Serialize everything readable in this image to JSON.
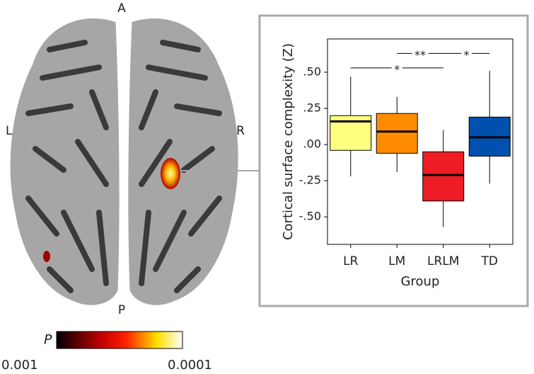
{
  "brain": {
    "anterior": "A",
    "posterior": "P",
    "left": "L",
    "right": "R"
  },
  "colorbar": {
    "title": "P",
    "min_label": "0.001",
    "max_label": "0.0001"
  },
  "chart_data": {
    "type": "box",
    "y_label": "Cortical surface complexity (Z)",
    "x_label": "Group",
    "categories": [
      "LR",
      "LM",
      "LRLM",
      "TD"
    ],
    "boxes": [
      {
        "min": -0.22,
        "q1": -0.04,
        "median": 0.16,
        "q3": 0.2,
        "max": 0.47,
        "color": "#ffff80"
      },
      {
        "min": -0.19,
        "q1": -0.06,
        "median": 0.09,
        "q3": 0.215,
        "max": 0.33,
        "color": "#ff8c00"
      },
      {
        "min": -0.57,
        "q1": -0.39,
        "median": -0.21,
        "q3": -0.05,
        "max": 0.1,
        "color": "#ee1c24"
      },
      {
        "min": -0.27,
        "q1": -0.08,
        "median": 0.05,
        "q3": 0.19,
        "max": 0.51,
        "color": "#0050b0"
      }
    ],
    "ylim": [
      -0.69,
      0.73
    ],
    "yticks": [
      {
        "value": -0.5,
        "label": "-.50"
      },
      {
        "value": -0.25,
        "label": "-.25"
      },
      {
        "value": 0,
        "label": ".00"
      },
      {
        "value": 0.25,
        "label": ".25"
      },
      {
        "value": 0.5,
        "label": ".50"
      }
    ],
    "significance": [
      {
        "from": "LR",
        "to": "LRLM",
        "label": "*",
        "level": 0.53
      },
      {
        "from": "LM",
        "to": "LRLM",
        "label": "**",
        "level": 0.63
      },
      {
        "from": "LRLM",
        "to": "TD",
        "label": "*",
        "level": 0.63
      }
    ]
  }
}
